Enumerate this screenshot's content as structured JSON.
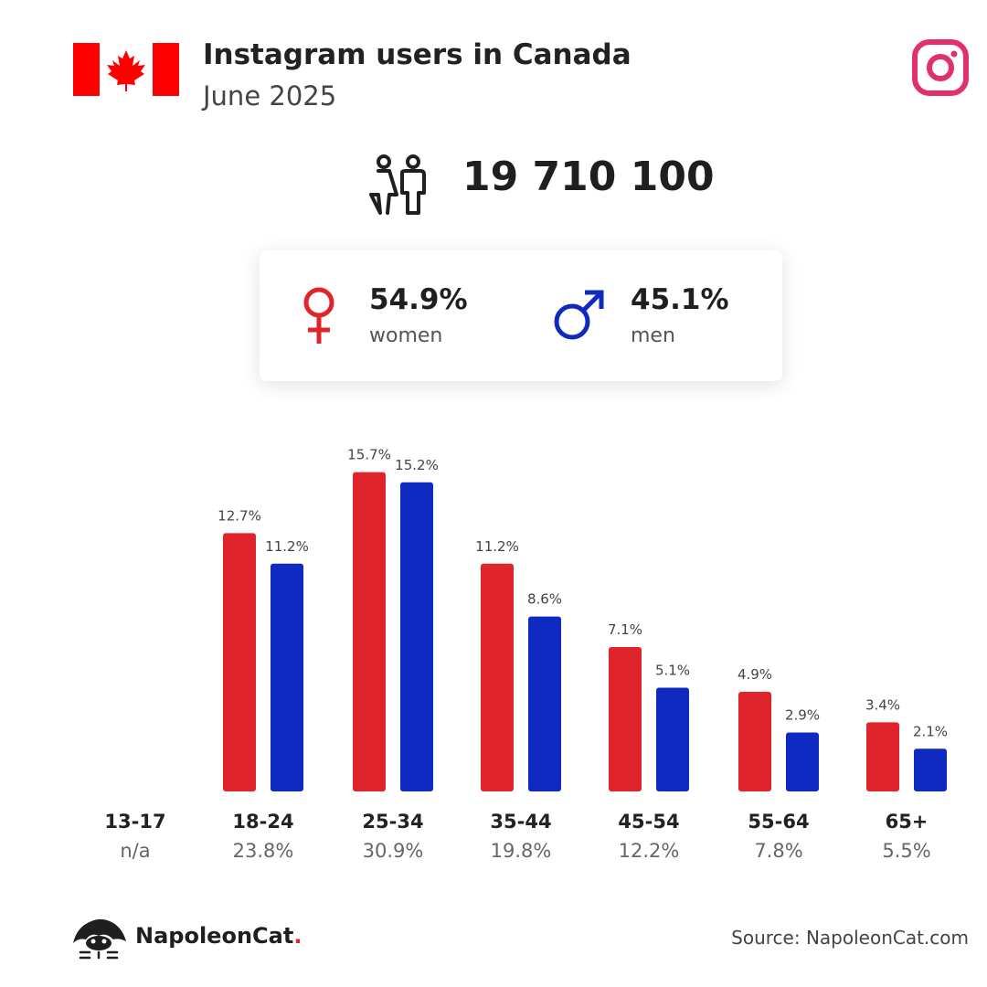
{
  "header": {
    "title": "Instagram users in Canada",
    "subtitle": "June 2025",
    "flag_icon": "canada-flag-icon",
    "platform_icon": "instagram-icon"
  },
  "total": {
    "icon": "people-icon",
    "value": "19 710 100"
  },
  "gender": {
    "women": {
      "icon": "female-icon",
      "value": "54.9%",
      "label": "women",
      "color": "#e0242c"
    },
    "men": {
      "icon": "male-icon",
      "value": "45.1%",
      "label": "men",
      "color": "#0f2ac0"
    }
  },
  "chart_data": {
    "type": "bar",
    "title": "",
    "xlabel": "",
    "ylabel": "",
    "grid": false,
    "categories": [
      "13-17",
      "18-24",
      "25-34",
      "35-44",
      "45-54",
      "55-64",
      "65+"
    ],
    "category_totals": [
      "n/a",
      "23.8%",
      "30.9%",
      "19.8%",
      "12.2%",
      "7.8%",
      "5.5%"
    ],
    "series": [
      {
        "color": "#e0242c",
        "values": [
          null,
          12.7,
          15.7,
          11.2,
          7.1,
          4.9,
          3.4
        ],
        "labels": [
          "",
          "12.7%",
          "15.7%",
          "11.2%",
          "7.1%",
          "4.9%",
          "3.4%"
        ]
      },
      {
        "color": "#0f2ac0",
        "values": [
          null,
          11.2,
          15.2,
          8.6,
          5.1,
          2.9,
          2.1
        ],
        "labels": [
          "",
          "11.2%",
          "15.2%",
          "8.6%",
          "5.1%",
          "2.9%",
          "2.1%"
        ]
      }
    ],
    "ylim": [
      0,
      16
    ]
  },
  "footer": {
    "logo_icon": "napoleoncat-logo-icon",
    "brand": "NapoleonCat",
    "brand_dot": ".",
    "source": "Source: NapoleonCat.com"
  }
}
